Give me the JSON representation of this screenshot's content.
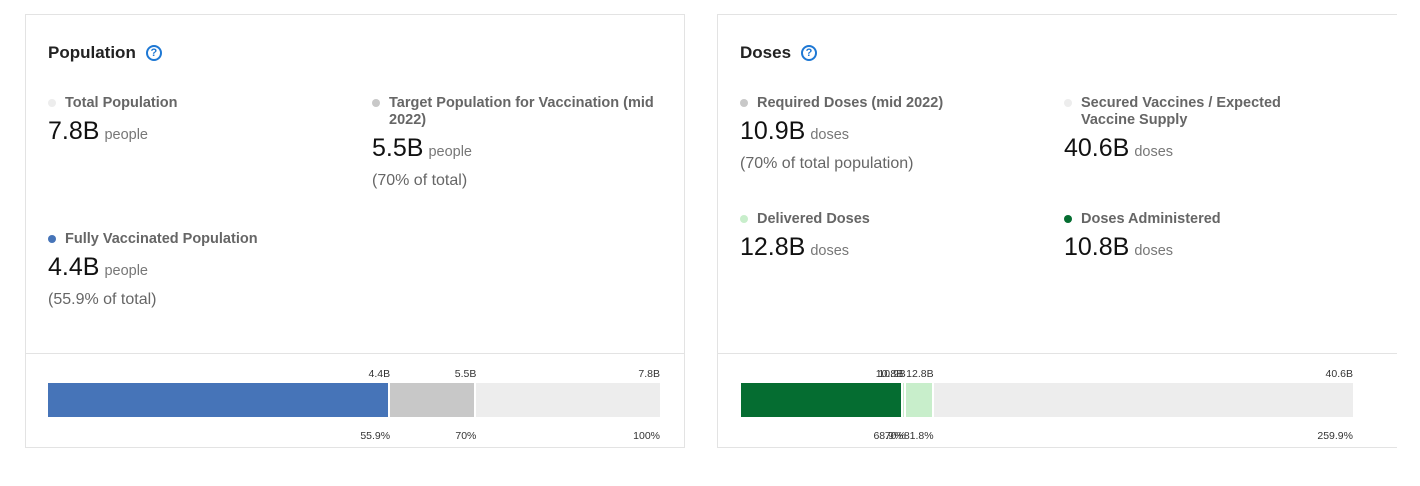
{
  "population": {
    "title": "Population",
    "help_icon": "question-circle-icon",
    "total": {
      "label": "Total Population",
      "value": "7.8B",
      "unit": "people",
      "dot_color": "#ededed"
    },
    "target": {
      "label": "Target Population for Vaccination (mid 2022)",
      "value": "5.5B",
      "unit": "people",
      "note": "(70% of total)",
      "dot_color": "#c8c8c8"
    },
    "fully": {
      "label": "Fully Vaccinated Population",
      "value": "4.4B",
      "unit": "people",
      "note": "(55.9% of total)",
      "dot_color": "#4674b8"
    },
    "bar": {
      "top_labels": [
        "4.4B",
        "5.5B",
        "7.8B"
      ],
      "bottom_labels": [
        "55.9%",
        "70%",
        "100%"
      ],
      "fractions": [
        0.559,
        0.7,
        1.0
      ],
      "colors": [
        "#4674b8",
        "#c8c8c8",
        "#ededed"
      ]
    }
  },
  "doses": {
    "title": "Doses",
    "help_icon": "question-circle-icon",
    "required": {
      "label": "Required Doses (mid 2022)",
      "value": "10.9B",
      "unit": "doses",
      "note": "(70% of total population)",
      "dot_color": "#c8c8c8"
    },
    "secured": {
      "label": "Secured Vaccines / Expected Vaccine Supply",
      "value": "40.6B",
      "unit": "doses",
      "dot_color": "#ededed"
    },
    "delivered": {
      "label": "Delivered Doses",
      "value": "12.8B",
      "unit": "doses",
      "dot_color": "#c8eecb"
    },
    "administered": {
      "label": "Doses Administered",
      "value": "10.8B",
      "unit": "doses",
      "dot_color": "#056d31"
    },
    "bar": {
      "top_labels": [
        "10.8B",
        "10.9B",
        "12.8B",
        "40.6B"
      ],
      "bottom_labels": [
        "68.9%",
        "70%",
        "81.8%",
        "259.9%"
      ],
      "percents": [
        68.9,
        70,
        81.8,
        259.9
      ],
      "colors": [
        "#056d31",
        "#c8eecb",
        "#c8eecb",
        "#ededed"
      ]
    }
  }
}
